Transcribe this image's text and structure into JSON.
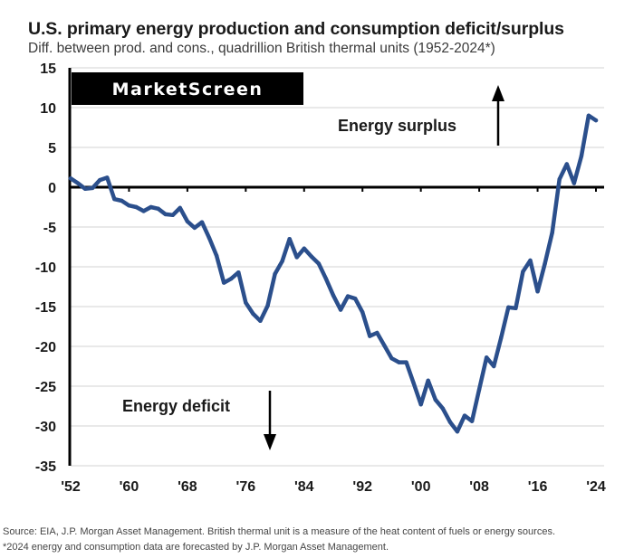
{
  "watermark": "MarketScreen",
  "chart_data": {
    "type": "line",
    "title": "U.S. primary energy production and consumption deficit/surplus",
    "subtitle": "Diff. between prod. and cons., quadrillion British thermal units (1952-2024*)",
    "xlabel": "",
    "ylabel": "",
    "ylim": [
      -35,
      15
    ],
    "xlim": [
      1952,
      2024
    ],
    "yticks": [
      15,
      10,
      5,
      0,
      -5,
      -10,
      -15,
      -20,
      -25,
      -30,
      -35
    ],
    "ytick_labels": [
      "15",
      "10",
      "5",
      "0",
      "-5",
      "-10",
      "-15",
      "-20",
      "-25",
      "-30",
      "-35"
    ],
    "xticks": [
      1952,
      1960,
      1968,
      1976,
      1984,
      1992,
      2000,
      2008,
      2016,
      2024
    ],
    "xtick_labels": [
      "'52",
      "'60",
      "'68",
      "'76",
      "'84",
      "'92",
      "'00",
      "'08",
      "'16",
      "'24"
    ],
    "grid": true,
    "line_color": "#2b4f8c",
    "series": [
      {
        "name": "Production minus consumption",
        "x": [
          1952,
          1953,
          1954,
          1955,
          1956,
          1957,
          1958,
          1959,
          1960,
          1961,
          1962,
          1963,
          1964,
          1965,
          1966,
          1967,
          1968,
          1969,
          1970,
          1971,
          1972,
          1973,
          1974,
          1975,
          1976,
          1977,
          1978,
          1979,
          1980,
          1981,
          1982,
          1983,
          1984,
          1985,
          1986,
          1987,
          1988,
          1989,
          1990,
          1991,
          1992,
          1993,
          1994,
          1995,
          1996,
          1997,
          1998,
          1999,
          2000,
          2001,
          2002,
          2003,
          2004,
          2005,
          2006,
          2007,
          2008,
          2009,
          2010,
          2011,
          2012,
          2013,
          2014,
          2015,
          2016,
          2017,
          2018,
          2019,
          2020,
          2021,
          2022,
          2023,
          2024
        ],
        "values": [
          1.1,
          0.5,
          -0.2,
          -0.1,
          0.9,
          1.2,
          -1.5,
          -1.7,
          -2.3,
          -2.5,
          -3.0,
          -2.5,
          -2.7,
          -3.4,
          -3.5,
          -2.6,
          -4.3,
          -5.1,
          -4.4,
          -6.4,
          -8.6,
          -12.0,
          -11.5,
          -10.7,
          -14.5,
          -15.9,
          -16.8,
          -14.9,
          -10.9,
          -9.3,
          -6.5,
          -8.8,
          -7.7,
          -8.7,
          -9.6,
          -11.5,
          -13.6,
          -15.4,
          -13.7,
          -14.0,
          -15.7,
          -18.7,
          -18.3,
          -19.9,
          -21.5,
          -22.0,
          -22.0,
          -24.6,
          -27.3,
          -24.3,
          -26.7,
          -27.8,
          -29.5,
          -30.7,
          -28.7,
          -29.4,
          -25.4,
          -21.4,
          -22.5,
          -18.9,
          -15.1,
          -15.2,
          -10.6,
          -9.2,
          -13.1,
          -9.6,
          -5.7,
          1.0,
          2.9,
          0.5,
          3.9,
          9.0,
          8.4
        ]
      }
    ],
    "annotations": [
      {
        "text": "Energy surplus",
        "arrow": "up",
        "near_x": 2010,
        "near_y": 8
      },
      {
        "text": "Energy deficit",
        "arrow": "down",
        "near_x": 1979,
        "near_y": -28
      }
    ]
  },
  "footnotes": [
    "Source: EIA, J.P. Morgan Asset Management. British thermal unit is a measure of the heat content of fuels or energy sources.",
    "*2024 energy and consumption data are forecasted by J.P. Morgan Asset Management."
  ]
}
